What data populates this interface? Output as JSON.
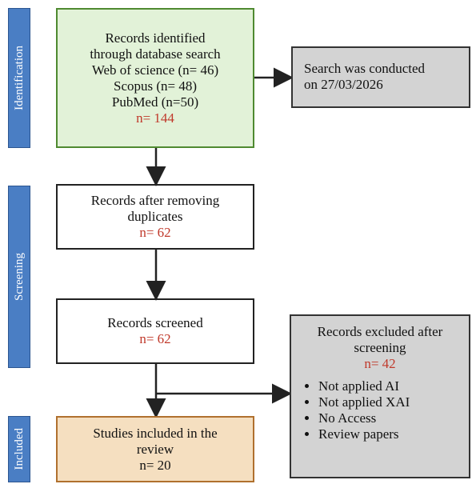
{
  "stages": [
    "Identification",
    "Screening",
    "Included"
  ],
  "identified": {
    "lines": [
      "Records identified",
      "through database search",
      "Web of science (n= 46)",
      "Scopus (n= 48)",
      "PubMed (n=50)"
    ],
    "count": "n= 144"
  },
  "search_note": {
    "lines": [
      "Search was conducted",
      "on 27/03/2026"
    ]
  },
  "deduplicated": {
    "lines": [
      "Records after removing",
      "duplicates"
    ],
    "count": "n= 62"
  },
  "screened": {
    "lines": [
      "Records screened"
    ],
    "count": "n= 62"
  },
  "excluded": {
    "lines": [
      "Records excluded after",
      "screening"
    ],
    "count": "n= 42",
    "reasons": [
      "Not applied AI",
      "Not applied XAI",
      "No Access",
      "Review papers"
    ]
  },
  "included": {
    "lines": [
      "Studies included in the",
      "review",
      "n= 20"
    ]
  }
}
